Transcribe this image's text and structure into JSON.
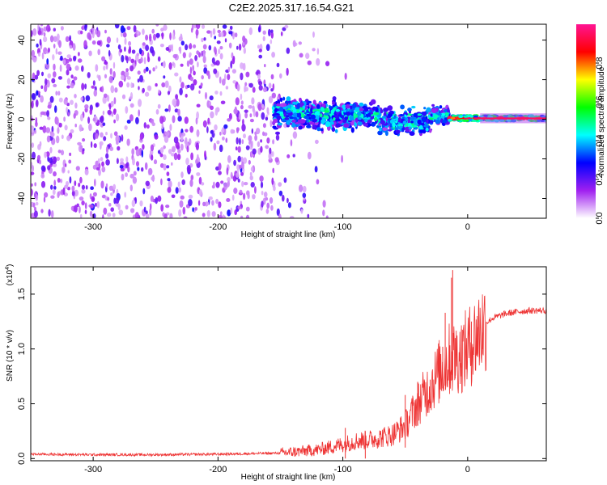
{
  "title": "C2E2.2025.317.16.54.G21",
  "chart_data": [
    {
      "type": "heatmap",
      "name": "spectrogram",
      "xlabel": "Height of straight line (km)",
      "ylabel": "Frequency (Hz)",
      "xlim": [
        -350,
        63
      ],
      "ylim": [
        -50,
        48
      ],
      "xticks": [
        -300,
        -200,
        -100,
        0
      ],
      "xtick_labels": [
        "-300",
        "-200",
        "-100",
        "0"
      ],
      "yticks": [
        -40,
        -20,
        0,
        20,
        40
      ],
      "ytick_labels": [
        "-40",
        "-20",
        "0",
        "20",
        "40"
      ],
      "description_bands": [
        {
          "x_range": [
            -350,
            -155
          ],
          "freq_range": [
            -50,
            48
          ],
          "amplitude": "low (0.1-0.25), scattered"
        },
        {
          "x_range": [
            -155,
            -15
          ],
          "freq_center": 3,
          "freq_halfwidth_start": 8,
          "freq_halfwidth_end": 4,
          "amplitude": "0.2-0.45"
        },
        {
          "x_range": [
            -15,
            63
          ],
          "freq_center": 0.5,
          "freq_halfwidth": 1.5,
          "amplitude": "0.6-1.0"
        }
      ]
    },
    {
      "type": "colorbar",
      "name": "colorbar",
      "label": "Normalized spectral amplitude",
      "range": [
        0,
        1
      ],
      "ticks": [
        0.0,
        0.2,
        0.4,
        0.6,
        0.8
      ],
      "tick_labels": [
        "0.0",
        "0.2",
        "0.4",
        "0.6",
        "0.8"
      ],
      "colors": [
        "#ffffff",
        "#a020f0",
        "#0000ff",
        "#00ffff",
        "#00ff00",
        "#ffff00",
        "#ff0000",
        "#ff1493"
      ]
    },
    {
      "type": "line",
      "name": "snr",
      "xlabel": "Height of straight line (km)",
      "ylabel": "SNR (10 * v/v)",
      "exponent_label": "(x10",
      "exponent_value": "4",
      "exponent_close": ")",
      "xlim": [
        -350,
        63
      ],
      "ylim": [
        -0.02,
        1.75
      ],
      "xticks": [
        -300,
        -200,
        -100,
        0
      ],
      "xtick_labels": [
        "-300",
        "-200",
        "-100",
        "0"
      ],
      "yticks": [
        0.0,
        0.5,
        1.0,
        1.5
      ],
      "ytick_labels": [
        "0.0",
        "0.5",
        "1.0",
        "1.5"
      ],
      "color": "#ee3333",
      "series": {
        "x": [
          -350,
          -300,
          -250,
          -200,
          -150,
          -120,
          -100,
          -90,
          -80,
          -70,
          -60,
          -50,
          -45,
          -40,
          -35,
          -30,
          -25,
          -20,
          -15,
          -10,
          -5,
          0,
          5,
          10,
          15,
          20,
          30,
          40,
          50,
          63
        ],
        "y": [
          0.04,
          0.035,
          0.035,
          0.04,
          0.05,
          0.08,
          0.13,
          0.16,
          0.17,
          0.19,
          0.22,
          0.3,
          0.4,
          0.5,
          0.58,
          0.66,
          0.75,
          0.84,
          0.9,
          0.93,
          0.95,
          1.0,
          1.08,
          1.17,
          1.24,
          1.28,
          1.32,
          1.34,
          1.35,
          1.35
        ]
      },
      "spikes": [
        {
          "x": -98,
          "y": 0.28
        },
        {
          "x": -82,
          "y": 0.25
        },
        {
          "x": -50,
          "y": 0.58
        },
        {
          "x": -40,
          "y": 0.7
        },
        {
          "x": -30,
          "y": 0.72
        },
        {
          "x": -20,
          "y": 1.02
        },
        {
          "x": -18,
          "y": 1.33
        },
        {
          "x": -13,
          "y": 1.65
        },
        {
          "x": -12,
          "y": 1.72
        },
        {
          "x": -10,
          "y": 1.1
        },
        {
          "x": -5,
          "y": 1.18
        },
        {
          "x": 3,
          "y": 1.25
        },
        {
          "x": 8,
          "y": 1.2
        },
        {
          "x": 12,
          "y": 1.15
        }
      ]
    }
  ]
}
